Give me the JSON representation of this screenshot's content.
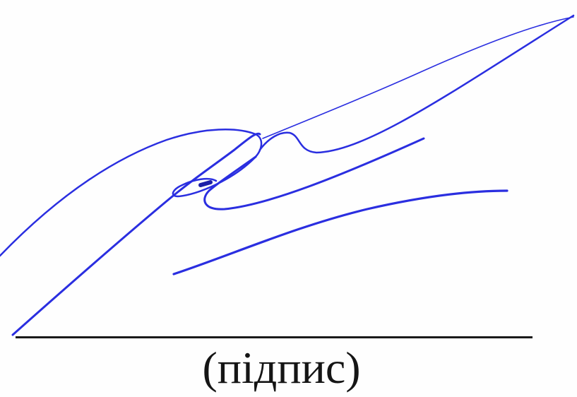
{
  "document": {
    "caption": "(підпис)",
    "signature_color": "#2a2ee0",
    "line_color": "#1a1a1a"
  }
}
